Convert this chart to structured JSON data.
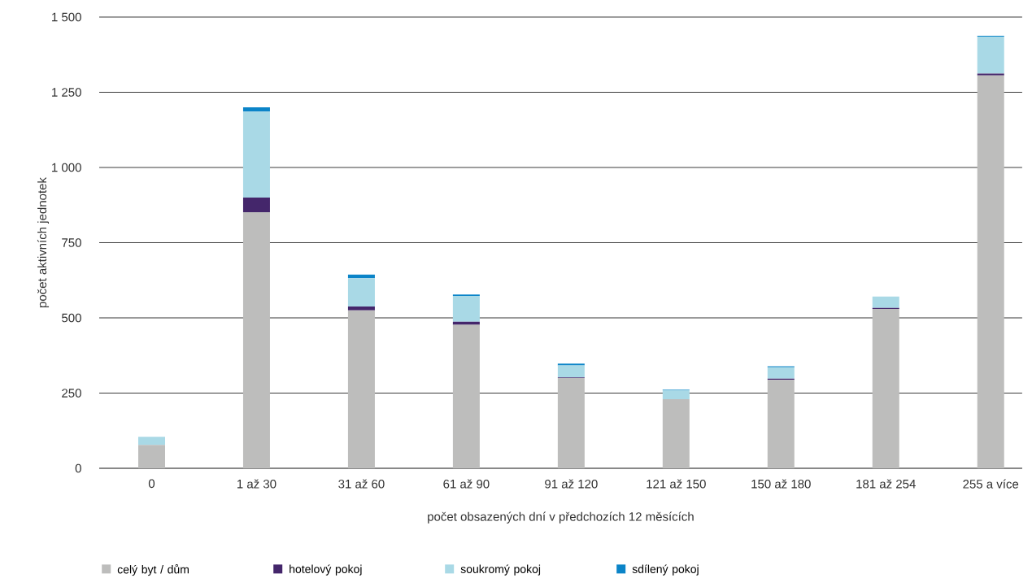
{
  "chart_data": {
    "type": "bar",
    "stacked": true,
    "xlabel": "počet obsazených dní v předchozích 12 měsících",
    "ylabel": "počet aktivních jednotek",
    "categories": [
      "0",
      "1 až 30",
      "31 až 60",
      "61 až 90",
      "91 až 120",
      "121 až 150",
      "150 až 180",
      "181 až 254",
      "255 a více"
    ],
    "series": [
      {
        "name": "celý byt / dům",
        "color": "#bdbdbc",
        "values": [
          78,
          851,
          525,
          477,
          300,
          230,
          294,
          530,
          1306
        ]
      },
      {
        "name": "hotelový pokoj",
        "color": "#44266b",
        "values": [
          0,
          49,
          13,
          10,
          2,
          0,
          4,
          3,
          6
        ]
      },
      {
        "name": "soukromý pokoj",
        "color": "#a9d9e6",
        "values": [
          27,
          286,
          94,
          86,
          40,
          30,
          38,
          38,
          123
        ]
      },
      {
        "name": "sdílený pokoj",
        "color": "#0b84c8",
        "values": [
          0,
          14,
          12,
          5,
          6,
          2,
          3,
          null,
          3
        ]
      }
    ],
    "ylim": [
      0,
      1500
    ],
    "yticks": [
      0,
      250,
      500,
      750,
      {
        "value": 1000,
        "label": "1 000"
      },
      {
        "value": 1250,
        "label": "1 250"
      },
      {
        "value": 1500,
        "label": "1 500"
      }
    ],
    "grid": "y",
    "legend": "bottom"
  }
}
